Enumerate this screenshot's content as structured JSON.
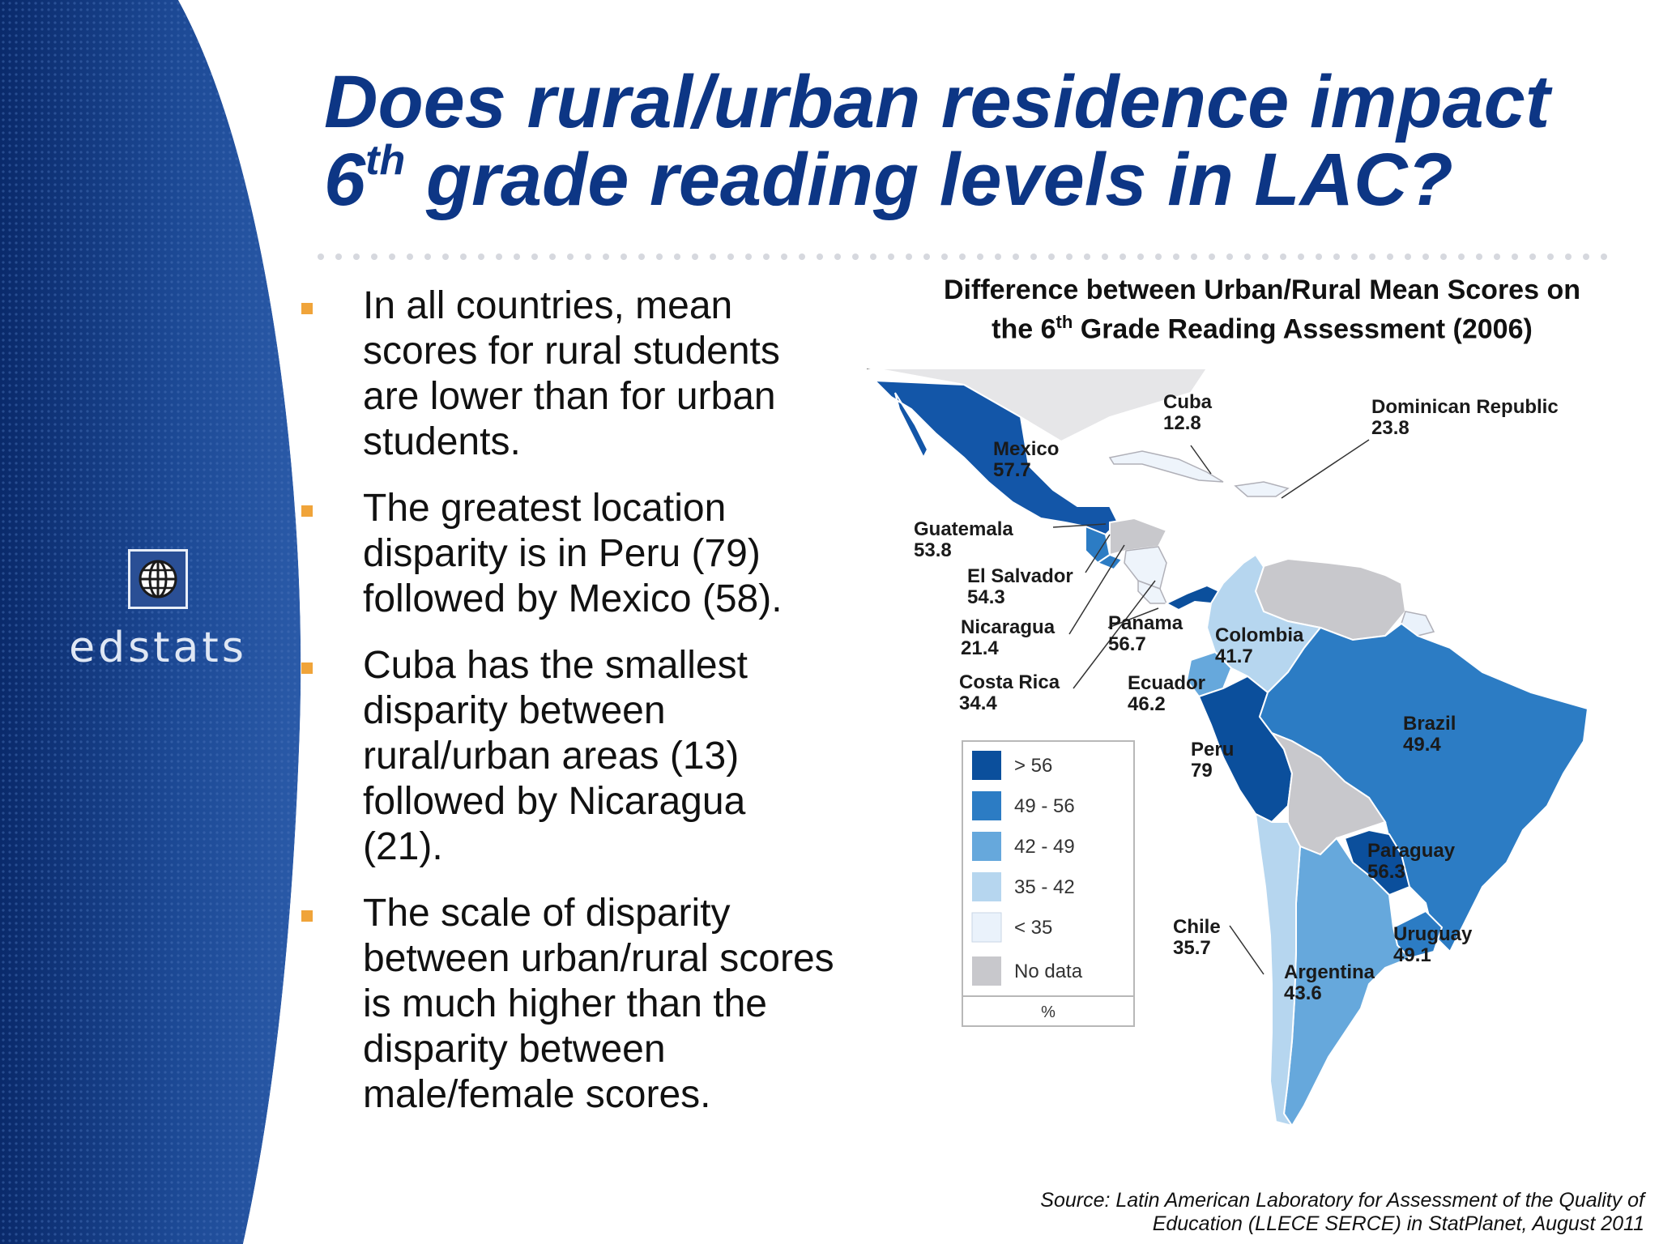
{
  "slide": {
    "title_part1": "Does rural/urban residence impact",
    "title_num": "6",
    "title_sup": "th",
    "title_part2": " grade reading levels in LAC?"
  },
  "logo": {
    "text": "edstats",
    "icon": "globe-icon"
  },
  "bullets": [
    "In all countries, mean scores for rural students are lower than for urban students.",
    "The greatest location disparity is in Peru (79) followed by Mexico (58).",
    "Cuba has the smallest disparity between rural/urban areas (13) followed by Nicaragua (21).",
    "The scale of disparity between urban/rural scores is much higher than the disparity between male/female scores."
  ],
  "map": {
    "title_line1": "Difference between Urban/Rural Mean Scores on",
    "title_line2_pre": "the 6",
    "title_line2_sup": "th",
    "title_line2_post": " Grade Reading Assessment (2006)",
    "countries": [
      {
        "name": "Mexico",
        "value": "57.7"
      },
      {
        "name": "Guatemala",
        "value": "53.8"
      },
      {
        "name": "El Salvador",
        "value": "54.3"
      },
      {
        "name": "Nicaragua",
        "value": "21.4"
      },
      {
        "name": "Costa Rica",
        "value": "34.4"
      },
      {
        "name": "Panama",
        "value": "56.7"
      },
      {
        "name": "Cuba",
        "value": "12.8"
      },
      {
        "name": "Dominican Republic",
        "value": "23.8"
      },
      {
        "name": "Colombia",
        "value": "41.7"
      },
      {
        "name": "Ecuador",
        "value": "46.2"
      },
      {
        "name": "Peru",
        "value": "79"
      },
      {
        "name": "Brazil",
        "value": "49.4"
      },
      {
        "name": "Paraguay",
        "value": "56.3"
      },
      {
        "name": "Uruguay",
        "value": "49.1"
      },
      {
        "name": "Chile",
        "value": "35.7"
      },
      {
        "name": "Argentina",
        "value": "43.6"
      }
    ],
    "legend": [
      {
        "label": "> 56",
        "color": "#0b4f9c"
      },
      {
        "label": "49 - 56",
        "color": "#2c7cc4"
      },
      {
        "label": "42 - 49",
        "color": "#66a8dc"
      },
      {
        "label": "35 - 42",
        "color": "#b6d6ef"
      },
      {
        "label": "< 35",
        "color": "#eaf2fb"
      },
      {
        "label": "No data",
        "color": "#c8c8cc"
      }
    ],
    "legend_unit": "%"
  },
  "source": {
    "line1": "Source: Latin American Laboratory for Assessment of the Quality of",
    "line2": "Education (LLECE SERCE) in StatPlanet, August 2011"
  },
  "colors": {
    "title": "#0d3685",
    "bullet": "#f0a43a",
    "panel": "#0d3685"
  }
}
